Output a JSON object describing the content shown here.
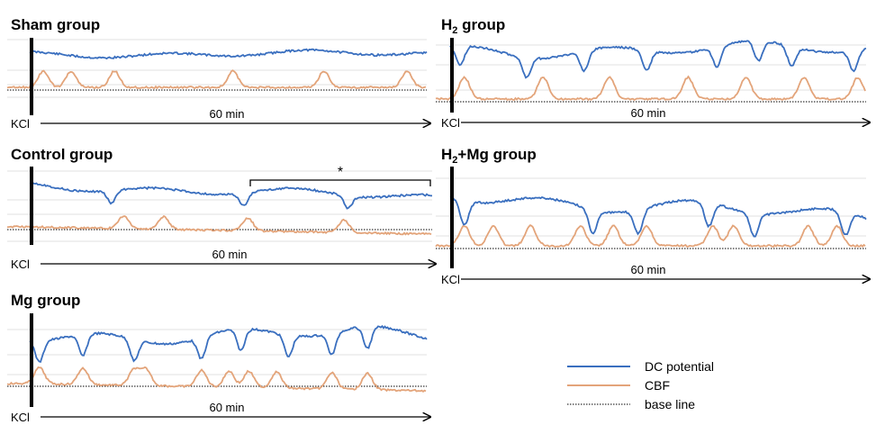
{
  "colors": {
    "dc": "#3a6fbf",
    "cbf": "#e3a47a",
    "baseline": "#000000",
    "grid": "#d9d9d9"
  },
  "stimulus_label": "KCl",
  "duration_label": "60 min",
  "legend": {
    "dc": "DC potential",
    "cbf": "CBF",
    "baseline": "base line"
  },
  "chart_data": [
    {
      "type": "line",
      "title": "Sham group",
      "annotation": "",
      "series": [
        {
          "name": "DC potential",
          "peaks": [],
          "note": "mild undulation"
        },
        {
          "name": "CBF",
          "peaks": [
            0.03,
            0.1,
            0.21,
            0.51,
            0.74,
            0.95
          ]
        }
      ]
    },
    {
      "type": "line",
      "title_main": "H",
      "title_sub": "2",
      "title_rest": " group",
      "annotation": "",
      "series": [
        {
          "name": "DC potential",
          "dips": [
            0.02,
            0.18,
            0.32,
            0.47,
            0.64,
            0.74,
            0.82,
            0.97
          ]
        },
        {
          "name": "CBF",
          "peaks": [
            0.03,
            0.22,
            0.38,
            0.57,
            0.71,
            0.85,
            0.98
          ]
        }
      ]
    },
    {
      "type": "line",
      "title": "Control group",
      "annotation": "*",
      "series": [
        {
          "name": "DC potential",
          "dips": [
            0.2,
            0.53,
            0.79
          ]
        },
        {
          "name": "CBF",
          "peaks": [
            0.23,
            0.33,
            0.54,
            0.78
          ]
        }
      ]
    },
    {
      "type": "line",
      "title_main": "H",
      "title_sub": "2",
      "title_rest": "+Mg group",
      "annotation": "",
      "series": [
        {
          "name": "DC potential",
          "dips": [
            0.03,
            0.34,
            0.45,
            0.62,
            0.73,
            0.95
          ]
        },
        {
          "name": "CBF",
          "peaks": [
            0.03,
            0.1,
            0.19,
            0.31,
            0.39,
            0.47,
            0.63,
            0.68,
            0.86,
            0.93
          ]
        }
      ]
    },
    {
      "type": "line",
      "title": "Mg group",
      "annotation": "",
      "series": [
        {
          "name": "DC potential",
          "dips": [
            0.02,
            0.13,
            0.26,
            0.43,
            0.53,
            0.65,
            0.76,
            0.85
          ]
        },
        {
          "name": "CBF",
          "peaks": [
            0.02,
            0.13,
            0.26,
            0.29,
            0.43,
            0.5,
            0.55,
            0.62,
            0.76,
            0.85
          ]
        }
      ]
    }
  ]
}
